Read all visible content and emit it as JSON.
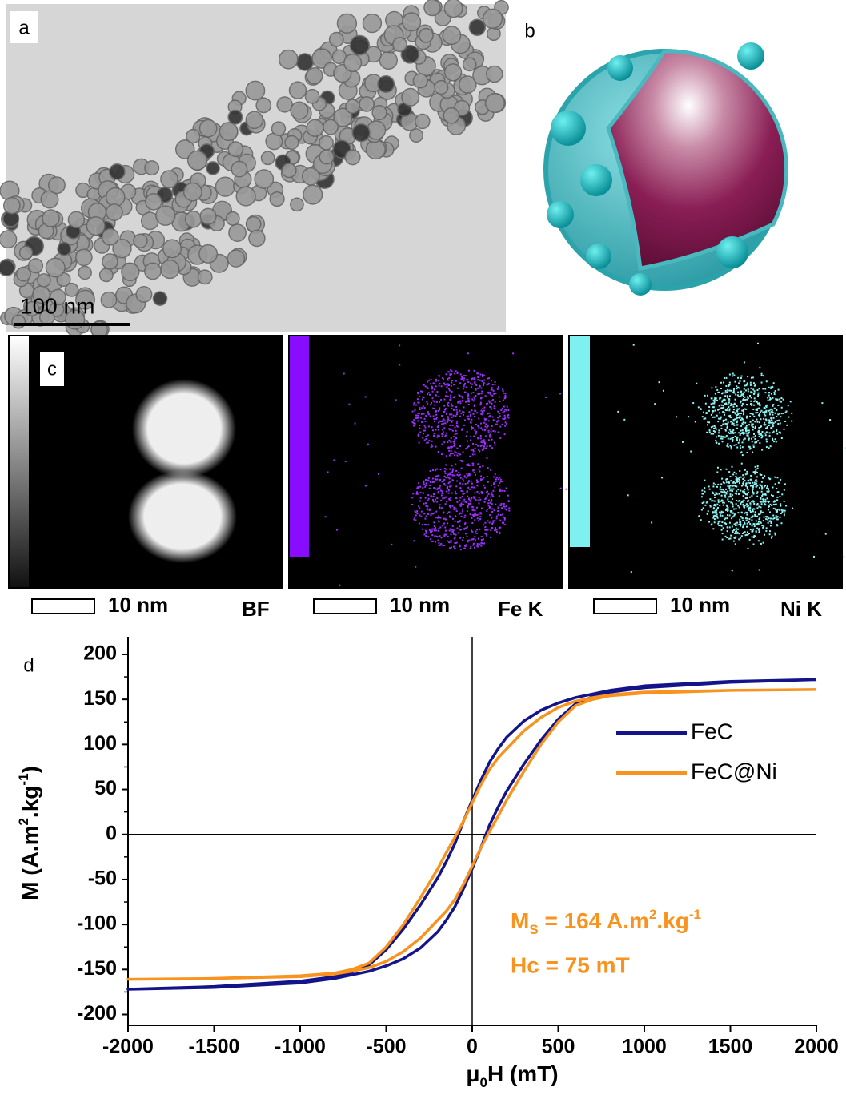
{
  "panels": {
    "a": {
      "label": "a",
      "scale_bar": "100 nm"
    },
    "b": {
      "label": "b"
    },
    "c": {
      "label": "c",
      "scale_bar": "10 nm",
      "maps": [
        "BF",
        "Fe K",
        "Ni K"
      ]
    },
    "d": {
      "label": "d"
    }
  },
  "chart_data": {
    "type": "line",
    "xlabel": [
      "μ",
      "0",
      "H (mT)"
    ],
    "ylabel": [
      "M (A.m",
      "2",
      ".kg",
      "-1",
      ")"
    ],
    "annotations": {
      "ms": [
        "M",
        "S",
        " = 164 A.m",
        "2",
        ".kg",
        "-1"
      ],
      "hc": "Hc = 75 mT"
    },
    "xlim": [
      -2000,
      2000
    ],
    "ylim": [
      -212,
      224
    ],
    "xticks": [
      -2000,
      -1500,
      -1000,
      -500,
      0,
      500,
      1000,
      1500,
      2000
    ],
    "yticks": [
      -200,
      -150,
      -100,
      -50,
      0,
      50,
      100,
      150,
      200
    ],
    "legend": "upper right",
    "x": [
      2000,
      1500,
      1000,
      800,
      700,
      600,
      500,
      400,
      300,
      200,
      150,
      100,
      50,
      0,
      -50,
      -100,
      -150,
      -200,
      -300,
      -400,
      -500,
      -600,
      -700,
      -800,
      -1000,
      -1500,
      -2000,
      -1500,
      -1000,
      -800,
      -700,
      -600,
      -500,
      -400,
      -300,
      -200,
      -150,
      -100,
      -50,
      0,
      50,
      100,
      150,
      200,
      300,
      400,
      500,
      600,
      700,
      800,
      1000,
      1500,
      2000
    ],
    "series": [
      {
        "name": "FeC",
        "color": "#14148a",
        "values": [
          172,
          170,
          165,
          160,
          156,
          152,
          146,
          138,
          126,
          108,
          95,
          80,
          60,
          38,
          15,
          -10,
          -30,
          -48,
          -78,
          -105,
          -128,
          -145,
          -153,
          -158,
          -163,
          -169,
          -172,
          -170,
          -165,
          -160,
          -156,
          -152,
          -146,
          -138,
          -126,
          -108,
          -95,
          -80,
          -60,
          -38,
          -15,
          10,
          30,
          48,
          78,
          105,
          128,
          145,
          153,
          158,
          163,
          169,
          172
        ]
      },
      {
        "name": "FeC@Ni",
        "color": "#f7931e",
        "values": [
          161,
          160,
          158,
          155,
          152,
          148,
          141,
          130,
          115,
          95,
          85,
          72,
          55,
          35,
          15,
          -3,
          -20,
          -38,
          -70,
          -100,
          -125,
          -143,
          -150,
          -154,
          -157,
          -160,
          -161,
          -160,
          -158,
          -155,
          -152,
          -148,
          -141,
          -130,
          -115,
          -95,
          -85,
          -72,
          -55,
          -35,
          -15,
          3,
          20,
          38,
          70,
          100,
          125,
          143,
          150,
          154,
          157,
          160,
          161
        ]
      }
    ]
  }
}
